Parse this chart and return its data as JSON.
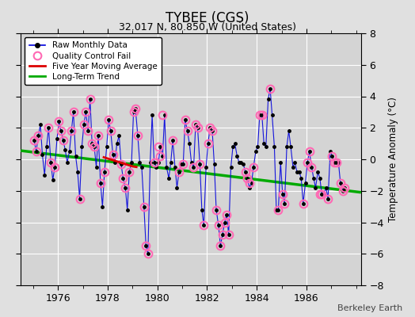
{
  "title": "TYBEE (CGS)",
  "subtitle": "32.017 N, 80.850 W (United States)",
  "ylabel": "Temperature Anomaly (°C)",
  "attribution": "Berkeley Earth",
  "xlim": [
    1974.5,
    1988.2
  ],
  "ylim": [
    -8,
    8
  ],
  "yticks": [
    -8,
    -6,
    -4,
    -2,
    0,
    2,
    4,
    6,
    8
  ],
  "xticks": [
    1976,
    1978,
    1980,
    1982,
    1984,
    1986
  ],
  "bg_color": "#e0e0e0",
  "plot_bg_color": "#d4d4d4",
  "grid_color": "#ffffff",
  "raw_color": "#0000dd",
  "raw_marker_color": "#000000",
  "qc_color": "#ff69b4",
  "moving_avg_color": "#dd0000",
  "trend_color": "#00aa00",
  "raw_x": [
    1975.04,
    1975.12,
    1975.21,
    1975.29,
    1975.37,
    1975.46,
    1975.54,
    1975.62,
    1975.71,
    1975.79,
    1975.87,
    1975.96,
    1976.04,
    1976.12,
    1976.21,
    1976.29,
    1976.37,
    1976.46,
    1976.54,
    1976.62,
    1976.71,
    1976.79,
    1976.87,
    1976.96,
    1977.04,
    1977.12,
    1977.21,
    1977.29,
    1977.37,
    1977.46,
    1977.54,
    1977.62,
    1977.71,
    1977.79,
    1977.87,
    1977.96,
    1978.04,
    1978.12,
    1978.21,
    1978.29,
    1978.37,
    1978.46,
    1978.54,
    1978.62,
    1978.71,
    1978.79,
    1978.87,
    1978.96,
    1979.04,
    1979.12,
    1979.21,
    1979.29,
    1979.37,
    1979.46,
    1979.54,
    1979.62,
    1979.71,
    1979.79,
    1979.87,
    1979.96,
    1980.04,
    1980.12,
    1980.21,
    1980.29,
    1980.37,
    1980.46,
    1980.54,
    1980.62,
    1980.71,
    1980.79,
    1980.87,
    1980.96,
    1981.04,
    1981.12,
    1981.21,
    1981.29,
    1981.37,
    1981.46,
    1981.54,
    1981.62,
    1981.71,
    1981.79,
    1981.87,
    1981.96,
    1982.04,
    1982.12,
    1982.21,
    1982.29,
    1982.37,
    1982.46,
    1982.54,
    1982.62,
    1982.71,
    1982.79,
    1982.87,
    1982.96,
    1983.04,
    1983.12,
    1983.21,
    1983.29,
    1983.37,
    1983.46,
    1983.54,
    1983.62,
    1983.71,
    1983.79,
    1983.87,
    1983.96,
    1984.04,
    1984.12,
    1984.21,
    1984.29,
    1984.37,
    1984.46,
    1984.54,
    1984.62,
    1984.71,
    1984.79,
    1984.87,
    1984.96,
    1985.04,
    1985.12,
    1985.21,
    1985.29,
    1985.37,
    1985.46,
    1985.54,
    1985.62,
    1985.71,
    1985.79,
    1985.87,
    1985.96,
    1986.04,
    1986.12,
    1986.21,
    1986.29,
    1986.37,
    1986.46,
    1986.54,
    1986.62,
    1986.71,
    1986.79,
    1986.87,
    1986.96,
    1987.04,
    1987.12,
    1987.21,
    1987.29,
    1987.37,
    1987.46,
    1987.54
  ],
  "raw_y": [
    1.2,
    0.5,
    1.5,
    2.2,
    0.3,
    -1.0,
    0.8,
    2.0,
    -0.2,
    -1.3,
    -0.5,
    1.3,
    2.4,
    1.8,
    1.2,
    0.6,
    -0.2,
    0.5,
    1.8,
    3.0,
    0.2,
    -0.8,
    -2.5,
    0.8,
    2.2,
    3.0,
    1.8,
    3.8,
    1.0,
    0.8,
    -0.5,
    1.5,
    -1.5,
    -3.0,
    -0.8,
    0.8,
    2.5,
    1.8,
    0.3,
    -0.2,
    1.0,
    1.5,
    -0.3,
    -1.2,
    -1.8,
    -3.2,
    -0.8,
    -0.2,
    3.0,
    3.2,
    1.5,
    -0.2,
    -0.5,
    -3.0,
    -5.5,
    -6.0,
    -0.2,
    2.8,
    -0.2,
    -0.5,
    -0.2,
    0.8,
    0.2,
    2.8,
    -0.5,
    -1.2,
    -0.2,
    1.2,
    -0.5,
    -1.8,
    -0.8,
    -0.3,
    -0.3,
    2.5,
    1.8,
    1.0,
    -0.2,
    -0.5,
    2.2,
    2.0,
    -0.3,
    -3.2,
    -4.2,
    -0.5,
    1.0,
    2.0,
    1.8,
    -0.3,
    -3.2,
    -4.2,
    -5.5,
    -4.8,
    -4.0,
    -3.5,
    -4.8,
    -0.5,
    0.8,
    1.0,
    0.2,
    -0.2,
    -0.2,
    -0.3,
    -0.8,
    -1.2,
    -1.8,
    -1.5,
    -0.5,
    0.5,
    0.8,
    2.8,
    2.8,
    1.0,
    0.8,
    3.8,
    4.5,
    2.8,
    0.8,
    -3.2,
    -3.2,
    -0.2,
    -2.2,
    -2.8,
    0.8,
    1.8,
    0.8,
    -0.5,
    -0.2,
    -0.8,
    -0.8,
    -1.2,
    -2.8,
    -1.5,
    -0.2,
    0.5,
    -0.5,
    -1.2,
    -1.8,
    -0.8,
    -1.2,
    -2.2,
    -2.2,
    -1.8,
    -2.5,
    0.5,
    0.2,
    -0.2,
    -0.2,
    -0.2,
    -1.5,
    -2.0,
    -1.8
  ],
  "qc_fail_x": [
    1975.04,
    1975.12,
    1975.21,
    1975.62,
    1975.71,
    1975.87,
    1976.04,
    1976.12,
    1976.21,
    1976.54,
    1976.62,
    1976.87,
    1977.04,
    1977.12,
    1977.21,
    1977.29,
    1977.37,
    1977.46,
    1977.62,
    1977.71,
    1977.87,
    1978.04,
    1978.12,
    1978.21,
    1978.54,
    1978.62,
    1978.71,
    1978.87,
    1979.04,
    1979.12,
    1979.21,
    1979.46,
    1979.54,
    1979.62,
    1979.87,
    1980.04,
    1980.12,
    1980.21,
    1980.62,
    1980.87,
    1981.04,
    1981.12,
    1981.21,
    1981.46,
    1981.54,
    1981.62,
    1981.71,
    1981.87,
    1982.04,
    1982.12,
    1982.21,
    1982.37,
    1982.46,
    1982.54,
    1982.62,
    1982.71,
    1982.79,
    1982.87,
    1983.54,
    1983.62,
    1983.71,
    1983.87,
    1984.12,
    1984.21,
    1984.54,
    1984.87,
    1985.04,
    1985.12,
    1985.87,
    1986.04,
    1986.12,
    1986.21,
    1986.54,
    1986.62,
    1986.87,
    1987.04,
    1987.12,
    1987.21,
    1987.37,
    1987.46,
    1987.54
  ],
  "qc_fail_y": [
    1.2,
    0.5,
    1.5,
    2.0,
    -0.2,
    -0.5,
    2.4,
    1.8,
    1.2,
    1.8,
    3.0,
    -2.5,
    2.2,
    3.0,
    1.8,
    3.8,
    1.0,
    0.8,
    1.5,
    -1.5,
    -0.8,
    2.5,
    1.8,
    0.3,
    -0.3,
    -1.2,
    -1.8,
    -0.8,
    3.0,
    3.2,
    1.5,
    -3.0,
    -5.5,
    -6.0,
    -0.2,
    0.8,
    0.2,
    2.8,
    1.2,
    -0.8,
    -0.3,
    2.5,
    1.8,
    -0.5,
    2.2,
    2.0,
    -0.3,
    -4.2,
    1.0,
    2.0,
    1.8,
    -3.2,
    -4.2,
    -5.5,
    -4.8,
    -4.0,
    -3.5,
    -4.8,
    -0.8,
    -1.2,
    -1.5,
    -0.5,
    2.8,
    2.8,
    4.5,
    -3.2,
    -2.2,
    -2.8,
    -2.8,
    -0.2,
    0.5,
    -0.5,
    -2.2,
    -2.2,
    -2.5,
    0.2,
    -0.2,
    -0.2,
    -1.5,
    -2.0,
    -1.8
  ],
  "moving_avg_x": [
    1977.8,
    1978.0,
    1978.2,
    1978.4,
    1978.6,
    1978.8,
    1979.0,
    1979.2
  ],
  "moving_avg_y": [
    0.15,
    0.05,
    -0.05,
    -0.15,
    -0.25,
    -0.35,
    -0.45,
    -0.5
  ],
  "trend_x": [
    1974.5,
    1988.2
  ],
  "trend_y": [
    0.55,
    -2.1
  ]
}
